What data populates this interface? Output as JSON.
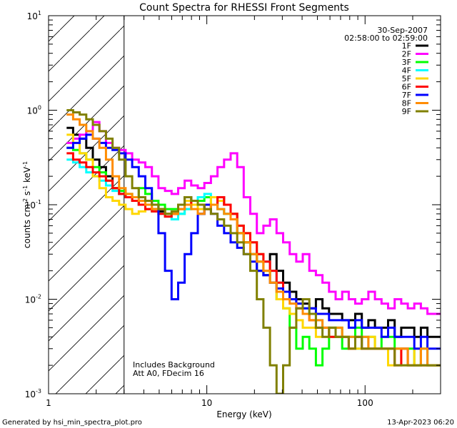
{
  "chart_data": {
    "type": "line",
    "title": "Count Spectra for RHESSI Front Segments",
    "xlabel": "Energy (keV)",
    "ylabel_main": "counts cm",
    "ylabel_sup1": "-2",
    "ylabel_mid": " s",
    "ylabel_sup2": "-1",
    "ylabel_end": " keV",
    "ylabel_sup3": "-1",
    "xscale": "log",
    "yscale": "log",
    "xlim": [
      1,
      300
    ],
    "ylim": [
      0.001,
      10
    ],
    "x_ticks": [
      {
        "value": 1,
        "label": "1"
      },
      {
        "value": 10,
        "label": "10"
      },
      {
        "value": 100,
        "label": "100"
      }
    ],
    "y_ticks": [
      {
        "value": 0.001,
        "base": "10",
        "exp": "-3"
      },
      {
        "value": 0.01,
        "base": "10",
        "exp": "-2"
      },
      {
        "value": 0.1,
        "base": "10",
        "exp": "-1"
      },
      {
        "value": 1,
        "base": "10",
        "exp": "0"
      },
      {
        "value": 10,
        "base": "10",
        "exp": "1"
      }
    ],
    "hatched_region": [
      1,
      3
    ],
    "date": "30-Sep-2007",
    "time_range": "02:58:00 to 02:59:00",
    "annotation_1": "Includes Background",
    "annotation_2": "Att A0, FDecim 16",
    "footer_left": "Generated by hsi_min_spectra_plot.pro",
    "footer_right": "13-Apr-2023 06:20",
    "legend_position": "top-right",
    "series": [
      {
        "name": "1F",
        "color": "#000000",
        "values": [
          0.65,
          0.55,
          0.5,
          0.4,
          0.3,
          0.25,
          0.2,
          0.15,
          0.13,
          0.12,
          0.11,
          0.1,
          0.09,
          0.09,
          0.085,
          0.08,
          0.08,
          0.1,
          0.12,
          0.1,
          0.08,
          0.09,
          0.1,
          0.12,
          0.1,
          0.08,
          0.05,
          0.04,
          0.03,
          0.02,
          0.018,
          0.03,
          0.02,
          0.015,
          0.012,
          0.01,
          0.009,
          0.008,
          0.01,
          0.008,
          0.007,
          0.007,
          0.006,
          0.006,
          0.007,
          0.005,
          0.006,
          0.005,
          0.005,
          0.006,
          0.004,
          0.005,
          0.005,
          0.004,
          0.005,
          0.004,
          0.004
        ]
      },
      {
        "name": "2F",
        "color": "#ff00ff",
        "values": [
          0.45,
          0.5,
          0.55,
          0.6,
          0.75,
          0.6,
          0.45,
          0.4,
          0.38,
          0.35,
          0.3,
          0.28,
          0.25,
          0.2,
          0.15,
          0.14,
          0.13,
          0.15,
          0.18,
          0.16,
          0.15,
          0.17,
          0.2,
          0.25,
          0.3,
          0.35,
          0.25,
          0.12,
          0.08,
          0.05,
          0.06,
          0.07,
          0.05,
          0.04,
          0.03,
          0.025,
          0.03,
          0.02,
          0.018,
          0.015,
          0.012,
          0.01,
          0.012,
          0.01,
          0.009,
          0.01,
          0.012,
          0.01,
          0.009,
          0.008,
          0.01,
          0.009,
          0.008,
          0.009,
          0.008,
          0.007,
          0.007
        ]
      },
      {
        "name": "3F",
        "color": "#00ff00",
        "values": [
          0.4,
          0.38,
          0.35,
          0.3,
          0.25,
          0.22,
          0.18,
          0.15,
          0.14,
          0.13,
          0.12,
          0.15,
          0.13,
          0.11,
          0.1,
          0.09,
          0.09,
          0.08,
          0.09,
          0.1,
          0.11,
          0.12,
          0.1,
          0.09,
          0.08,
          0.07,
          0.05,
          0.04,
          0.03,
          0.025,
          0.02,
          0.015,
          0.01,
          0.008,
          0.005,
          0.003,
          0.004,
          0.003,
          0.002,
          0.003,
          0.004,
          0.005,
          0.003,
          0.004,
          0.005,
          0.004,
          0.004,
          0.003,
          0.004,
          0.004,
          0.003,
          0.003,
          0.003,
          0.002,
          0.003,
          0.002,
          0.002
        ]
      },
      {
        "name": "4F",
        "color": "#00ffff",
        "values": [
          0.3,
          0.28,
          0.25,
          0.22,
          0.2,
          0.18,
          0.16,
          0.14,
          0.13,
          0.12,
          0.11,
          0.1,
          0.09,
          0.085,
          0.08,
          0.075,
          0.07,
          0.08,
          0.09,
          0.1,
          0.12,
          0.13,
          0.1,
          0.09,
          0.08,
          0.07,
          0.06,
          0.05,
          0.04,
          0.03,
          0.025,
          0.02,
          0.015,
          0.012,
          0.01,
          0.009,
          0.008,
          0.007,
          0.006,
          0.005,
          0.005,
          0.004,
          0.004,
          0.004,
          0.003,
          0.004,
          0.003,
          0.003,
          0.003,
          0.003,
          0.003,
          0.003,
          0.002,
          0.002,
          0.003,
          0.002,
          0.002
        ]
      },
      {
        "name": "5F",
        "color": "#ffd700",
        "values": [
          0.55,
          0.45,
          0.35,
          0.3,
          0.2,
          0.15,
          0.12,
          0.11,
          0.1,
          0.09,
          0.08,
          0.085,
          0.09,
          0.1,
          0.09,
          0.08,
          0.08,
          0.1,
          0.11,
          0.1,
          0.09,
          0.1,
          0.12,
          0.11,
          0.1,
          0.08,
          0.06,
          0.05,
          0.04,
          0.03,
          0.02,
          0.015,
          0.01,
          0.008,
          0.007,
          0.006,
          0.005,
          0.005,
          0.004,
          0.004,
          0.005,
          0.004,
          0.004,
          0.003,
          0.003,
          0.003,
          0.004,
          0.003,
          0.003,
          0.002,
          0.003,
          0.002,
          0.002,
          0.003,
          0.002,
          0.002,
          0.002
        ]
      },
      {
        "name": "6F",
        "color": "#ff0000",
        "values": [
          0.35,
          0.3,
          0.28,
          0.25,
          0.22,
          0.2,
          0.18,
          0.15,
          0.13,
          0.12,
          0.11,
          0.1,
          0.09,
          0.085,
          0.08,
          0.075,
          0.08,
          0.09,
          0.1,
          0.11,
          0.1,
          0.09,
          0.1,
          0.12,
          0.1,
          0.08,
          0.06,
          0.05,
          0.04,
          0.03,
          0.025,
          0.02,
          0.015,
          0.012,
          0.01,
          0.008,
          0.007,
          0.006,
          0.005,
          0.005,
          0.004,
          0.004,
          0.004,
          0.003,
          0.004,
          0.003,
          0.003,
          0.003,
          0.003,
          0.003,
          0.002,
          0.003,
          0.002,
          0.002,
          0.002,
          0.002,
          0.002
        ]
      },
      {
        "name": "7F",
        "color": "#0000ff",
        "values": [
          0.4,
          0.45,
          0.5,
          0.55,
          0.5,
          0.45,
          0.4,
          0.38,
          0.35,
          0.3,
          0.25,
          0.2,
          0.15,
          0.1,
          0.05,
          0.02,
          0.01,
          0.015,
          0.03,
          0.05,
          0.08,
          0.1,
          0.08,
          0.06,
          0.05,
          0.04,
          0.035,
          0.03,
          0.025,
          0.02,
          0.018,
          0.015,
          0.013,
          0.012,
          0.01,
          0.009,
          0.008,
          0.008,
          0.007,
          0.007,
          0.006,
          0.006,
          0.006,
          0.005,
          0.006,
          0.005,
          0.005,
          0.005,
          0.004,
          0.005,
          0.004,
          0.004,
          0.004,
          0.003,
          0.004,
          0.003,
          0.003
        ]
      },
      {
        "name": "8F",
        "color": "#ff8c00",
        "values": [
          0.9,
          0.8,
          0.7,
          0.6,
          0.5,
          0.4,
          0.3,
          0.2,
          0.15,
          0.13,
          0.12,
          0.11,
          0.1,
          0.09,
          0.09,
          0.08,
          0.08,
          0.09,
          0.1,
          0.09,
          0.08,
          0.09,
          0.1,
          0.09,
          0.08,
          0.07,
          0.05,
          0.04,
          0.03,
          0.025,
          0.02,
          0.015,
          0.012,
          0.01,
          0.009,
          0.008,
          0.007,
          0.006,
          0.006,
          0.005,
          0.005,
          0.005,
          0.004,
          0.004,
          0.004,
          0.004,
          0.003,
          0.003,
          0.003,
          0.003,
          0.003,
          0.003,
          0.002,
          0.002,
          0.003,
          0.002,
          0.002
        ]
      },
      {
        "name": "9F",
        "color": "#808000",
        "values": [
          1.0,
          0.95,
          0.9,
          0.8,
          0.7,
          0.6,
          0.5,
          0.4,
          0.3,
          0.2,
          0.15,
          0.12,
          0.11,
          0.1,
          0.09,
          0.08,
          0.085,
          0.1,
          0.12,
          0.11,
          0.1,
          0.09,
          0.08,
          0.07,
          0.06,
          0.05,
          0.04,
          0.03,
          0.02,
          0.01,
          0.005,
          0.002,
          0.001,
          0.002,
          0.005,
          0.008,
          0.01,
          0.007,
          0.005,
          0.004,
          0.005,
          0.004,
          0.004,
          0.003,
          0.004,
          0.003,
          0.003,
          0.003,
          0.003,
          0.003,
          0.002,
          0.002,
          0.002,
          0.002,
          0.002,
          0.002,
          0.002
        ]
      }
    ]
  }
}
